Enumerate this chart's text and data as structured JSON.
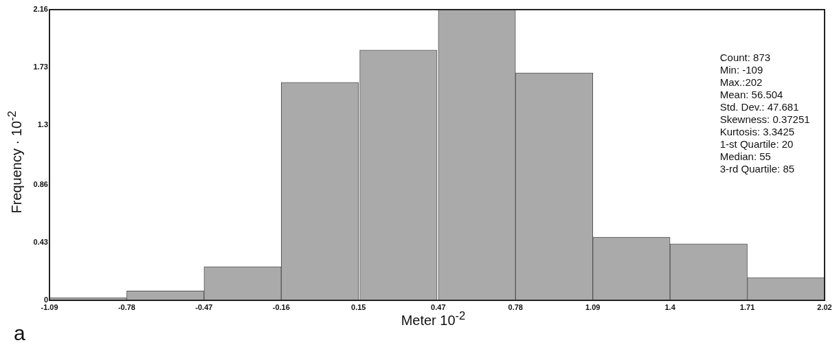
{
  "chart_data": {
    "type": "histogram",
    "xlabel": "Meter 10$^{-2}$",
    "ylabel": "Frequency · 10$^{-2}$",
    "bins": [
      -1.09,
      -0.78,
      -0.47,
      -0.16,
      0.15,
      0.47,
      0.78,
      1.09,
      1.4,
      1.71,
      2.02
    ],
    "values": [
      0.02,
      0.07,
      0.25,
      1.62,
      1.86,
      2.16,
      1.69,
      0.47,
      0.42,
      0.17
    ],
    "color": "#aaaaaa",
    "xlim": [
      -1.09,
      2.02
    ],
    "xticks": [
      -1.09,
      -0.78,
      -0.47,
      -0.16,
      0.15,
      0.47,
      0.78,
      1.09,
      1.4,
      1.71,
      2.02
    ],
    "ylim": [
      0,
      2.16
    ],
    "yticks": [
      0,
      0.43,
      0.86,
      1.3,
      1.73,
      2.16
    ],
    "grid": false,
    "legend": false,
    "annotations": [
      "Count: 873",
      "Min: -109",
      "Max.:202",
      "Mean: 56.504",
      "Std. Dev.: 47.681",
      "Skewness: 0.37251",
      "Kurtosis: 3.3425",
      "1-st Quartile: 20",
      "Median: 55",
      "3-rd Quartile: 85",
      "a"
    ]
  }
}
